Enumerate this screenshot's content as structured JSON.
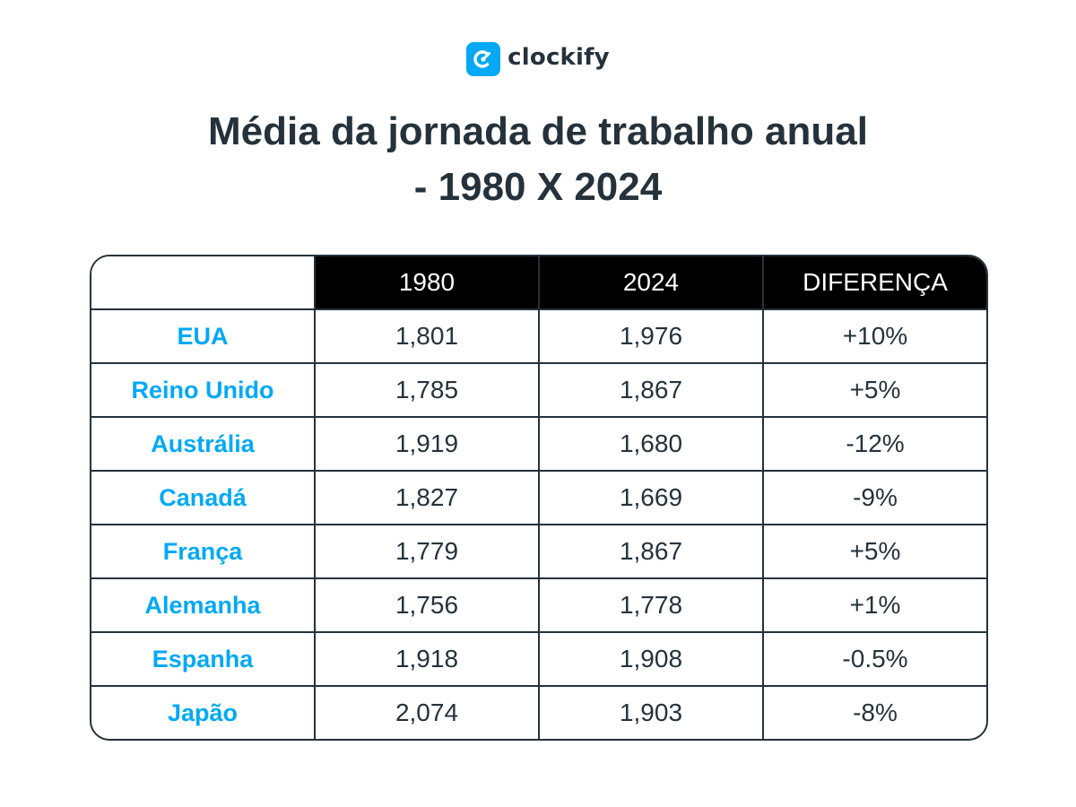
{
  "brand": {
    "name": "clockify",
    "color": "#03a9f4",
    "icon": "clockify-logo-icon"
  },
  "title": {
    "line1": "Média da jornada de trabalho anual",
    "line2": "- 1980 X 2024"
  },
  "table": {
    "headers": [
      "",
      "1980",
      "2024",
      "DIFERENÇA"
    ],
    "rows": [
      {
        "country": "EUA",
        "y1980": "1,801",
        "y2024": "1,976",
        "diff": "+10%"
      },
      {
        "country": "Reino Unido",
        "y1980": "1,785",
        "y2024": "1,867",
        "diff": "+5%"
      },
      {
        "country": "Austrália",
        "y1980": "1,919",
        "y2024": "1,680",
        "diff": "-12%"
      },
      {
        "country": "Canadá",
        "y1980": "1,827",
        "y2024": "1,669",
        "diff": "-9%"
      },
      {
        "country": "França",
        "y1980": "1,779",
        "y2024": "1,867",
        "diff": "+5%"
      },
      {
        "country": "Alemanha",
        "y1980": "1,756",
        "y2024": "1,778",
        "diff": "+1%"
      },
      {
        "country": "Espanha",
        "y1980": "1,918",
        "y2024": "1,908",
        "diff": "-0.5%"
      },
      {
        "country": "Japão",
        "y1980": "2,074",
        "y2024": "1,903",
        "diff": "-8%"
      }
    ]
  },
  "colors": {
    "accent": "#03a9f4",
    "text": "#25323b",
    "header_bg": "#000000"
  }
}
